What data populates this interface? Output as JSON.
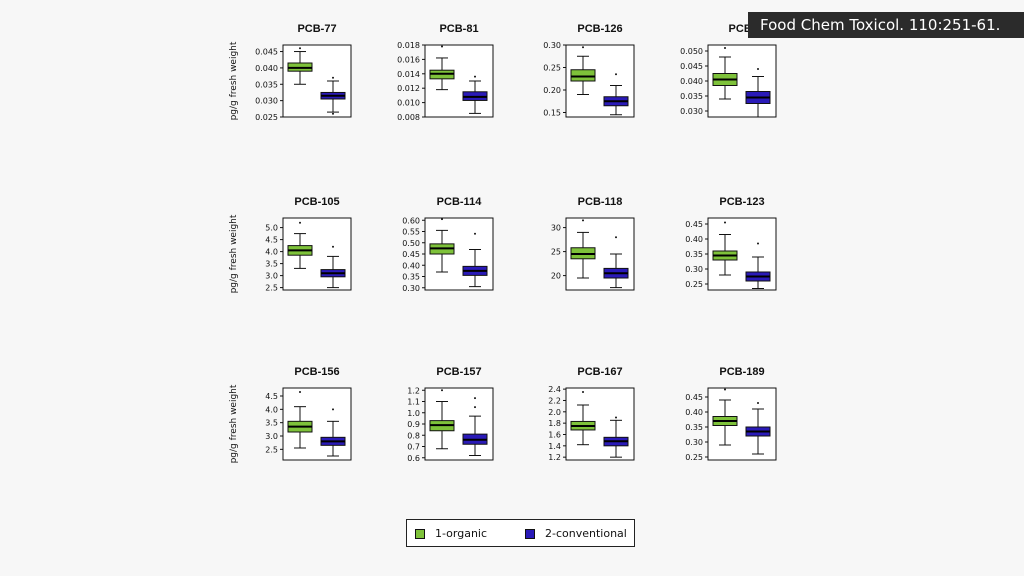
{
  "citation": "Food Chem Toxicol. 110:251-61.",
  "colors": {
    "organic": "#7ec23a",
    "conventional": "#2a1ab8"
  },
  "legend": {
    "organic_label": "1-organic",
    "conventional_label": "2-conventional"
  },
  "chart_data": [
    {
      "type": "box",
      "title": "PCB-77",
      "ylabel": "pg/g fresh weight",
      "ylim": [
        0.025,
        0.047
      ],
      "yticks": [
        "0.025",
        "0.030",
        "0.035",
        "0.040",
        "0.045"
      ],
      "series": [
        {
          "name": "1-organic",
          "whisker_low": 0.035,
          "q1": 0.039,
          "median": 0.04,
          "q3": 0.0415,
          "whisker_high": 0.045,
          "outliers": [
            0.046
          ]
        },
        {
          "name": "2-conventional",
          "whisker_low": 0.0265,
          "q1": 0.0305,
          "median": 0.0315,
          "q3": 0.0325,
          "whisker_high": 0.036,
          "outliers": [
            0.037,
            0.026
          ]
        }
      ]
    },
    {
      "type": "box",
      "title": "PCB-81",
      "ylabel": "",
      "ylim": [
        0.008,
        0.018
      ],
      "yticks": [
        "0.008",
        "0.010",
        "0.012",
        "0.014",
        "0.016",
        "0.018"
      ],
      "series": [
        {
          "name": "1-organic",
          "whisker_low": 0.0118,
          "q1": 0.0133,
          "median": 0.014,
          "q3": 0.0145,
          "whisker_high": 0.0162,
          "outliers": [
            0.0178
          ]
        },
        {
          "name": "2-conventional",
          "whisker_low": 0.0085,
          "q1": 0.0103,
          "median": 0.0108,
          "q3": 0.0115,
          "whisker_high": 0.013,
          "outliers": [
            0.0136
          ]
        }
      ]
    },
    {
      "type": "box",
      "title": "PCB-126",
      "ylabel": "",
      "ylim": [
        0.14,
        0.3
      ],
      "yticks": [
        "0.15",
        "0.20",
        "0.25",
        "0.30"
      ],
      "series": [
        {
          "name": "1-organic",
          "whisker_low": 0.19,
          "q1": 0.22,
          "median": 0.23,
          "q3": 0.245,
          "whisker_high": 0.275,
          "outliers": [
            0.295
          ]
        },
        {
          "name": "2-conventional",
          "whisker_low": 0.145,
          "q1": 0.165,
          "median": 0.175,
          "q3": 0.185,
          "whisker_high": 0.21,
          "outliers": [
            0.235
          ]
        }
      ]
    },
    {
      "type": "box",
      "title": "PCB-",
      "ylabel": "",
      "ylim": [
        0.028,
        0.052
      ],
      "yticks": [
        "0.030",
        "0.035",
        "0.040",
        "0.045",
        "0.050"
      ],
      "series": [
        {
          "name": "1-organic",
          "whisker_low": 0.034,
          "q1": 0.0385,
          "median": 0.0405,
          "q3": 0.0425,
          "whisker_high": 0.048,
          "outliers": [
            0.051
          ]
        },
        {
          "name": "2-conventional",
          "whisker_low": 0.028,
          "q1": 0.0325,
          "median": 0.0345,
          "q3": 0.0365,
          "whisker_high": 0.0415,
          "outliers": [
            0.044
          ]
        }
      ]
    },
    {
      "type": "box",
      "title": "PCB-105",
      "ylabel": "pg/g fresh weight",
      "ylim": [
        2.4,
        5.4
      ],
      "yticks": [
        "2.5",
        "3.0",
        "3.5",
        "4.0",
        "4.5",
        "5.0"
      ],
      "series": [
        {
          "name": "1-organic",
          "whisker_low": 3.3,
          "q1": 3.85,
          "median": 4.05,
          "q3": 4.25,
          "whisker_high": 4.75,
          "outliers": [
            5.2
          ]
        },
        {
          "name": "2-conventional",
          "whisker_low": 2.5,
          "q1": 2.95,
          "median": 3.1,
          "q3": 3.25,
          "whisker_high": 3.8,
          "outliers": [
            4.2
          ]
        }
      ]
    },
    {
      "type": "box",
      "title": "PCB-114",
      "ylabel": "",
      "ylim": [
        0.29,
        0.61
      ],
      "yticks": [
        "0.30",
        "0.35",
        "0.40",
        "0.45",
        "0.50",
        "0.55",
        "0.60"
      ],
      "series": [
        {
          "name": "1-organic",
          "whisker_low": 0.37,
          "q1": 0.45,
          "median": 0.475,
          "q3": 0.495,
          "whisker_high": 0.555,
          "outliers": [
            0.605
          ]
        },
        {
          "name": "2-conventional",
          "whisker_low": 0.305,
          "q1": 0.355,
          "median": 0.375,
          "q3": 0.395,
          "whisker_high": 0.47,
          "outliers": [
            0.54
          ]
        }
      ]
    },
    {
      "type": "box",
      "title": "PCB-118",
      "ylabel": "",
      "ylim": [
        17,
        32
      ],
      "yticks": [
        "20",
        "25",
        "30"
      ],
      "series": [
        {
          "name": "1-organic",
          "whisker_low": 19.5,
          "q1": 23.5,
          "median": 24.5,
          "q3": 25.8,
          "whisker_high": 29.0,
          "outliers": [
            31.5
          ]
        },
        {
          "name": "2-conventional",
          "whisker_low": 17.5,
          "q1": 19.5,
          "median": 20.5,
          "q3": 21.5,
          "whisker_high": 24.5,
          "outliers": [
            28.0
          ]
        }
      ]
    },
    {
      "type": "box",
      "title": "PCB-123",
      "ylabel": "",
      "ylim": [
        0.23,
        0.47
      ],
      "yticks": [
        "0.25",
        "0.30",
        "0.35",
        "0.40",
        "0.45"
      ],
      "series": [
        {
          "name": "1-organic",
          "whisker_low": 0.28,
          "q1": 0.33,
          "median": 0.345,
          "q3": 0.36,
          "whisker_high": 0.415,
          "outliers": [
            0.455
          ]
        },
        {
          "name": "2-conventional",
          "whisker_low": 0.235,
          "q1": 0.26,
          "median": 0.275,
          "q3": 0.29,
          "whisker_high": 0.34,
          "outliers": [
            0.385
          ]
        }
      ]
    },
    {
      "type": "box",
      "title": "PCB-156",
      "ylabel": "pg/g fresh weight",
      "ylim": [
        2.1,
        4.8
      ],
      "yticks": [
        "2.5",
        "3.0",
        "3.5",
        "4.0",
        "4.5"
      ],
      "series": [
        {
          "name": "1-organic",
          "whisker_low": 2.55,
          "q1": 3.15,
          "median": 3.35,
          "q3": 3.55,
          "whisker_high": 4.1,
          "outliers": [
            4.65
          ]
        },
        {
          "name": "2-conventional",
          "whisker_low": 2.25,
          "q1": 2.65,
          "median": 2.8,
          "q3": 2.95,
          "whisker_high": 3.55,
          "outliers": [
            4.0
          ]
        }
      ]
    },
    {
      "type": "box",
      "title": "PCB-157",
      "ylabel": "",
      "ylim": [
        0.58,
        1.22
      ],
      "yticks": [
        "0.6",
        "0.7",
        "0.8",
        "0.9",
        "1.0",
        "1.1",
        "1.2"
      ],
      "series": [
        {
          "name": "1-organic",
          "whisker_low": 0.68,
          "q1": 0.84,
          "median": 0.89,
          "q3": 0.93,
          "whisker_high": 1.1,
          "outliers": [
            1.2
          ]
        },
        {
          "name": "2-conventional",
          "whisker_low": 0.62,
          "q1": 0.72,
          "median": 0.76,
          "q3": 0.81,
          "whisker_high": 0.97,
          "outliers": [
            1.05,
            1.13
          ]
        }
      ]
    },
    {
      "type": "box",
      "title": "PCB-167",
      "ylabel": "",
      "ylim": [
        1.15,
        2.42
      ],
      "yticks": [
        "1.2",
        "1.4",
        "1.6",
        "1.8",
        "2.0",
        "2.2",
        "2.4"
      ],
      "series": [
        {
          "name": "1-organic",
          "whisker_low": 1.42,
          "q1": 1.68,
          "median": 1.75,
          "q3": 1.83,
          "whisker_high": 2.12,
          "outliers": [
            2.35
          ]
        },
        {
          "name": "2-conventional",
          "whisker_low": 1.2,
          "q1": 1.4,
          "median": 1.48,
          "q3": 1.55,
          "whisker_high": 1.85,
          "outliers": [
            1.9
          ]
        }
      ]
    },
    {
      "type": "box",
      "title": "PCB-189",
      "ylabel": "",
      "ylim": [
        0.24,
        0.48
      ],
      "yticks": [
        "0.25",
        "0.30",
        "0.35",
        "0.40",
        "0.45"
      ],
      "series": [
        {
          "name": "1-organic",
          "whisker_low": 0.29,
          "q1": 0.355,
          "median": 0.37,
          "q3": 0.385,
          "whisker_high": 0.44,
          "outliers": [
            0.475
          ]
        },
        {
          "name": "2-conventional",
          "whisker_low": 0.26,
          "q1": 0.32,
          "median": 0.335,
          "q3": 0.35,
          "whisker_high": 0.41,
          "outliers": [
            0.43
          ]
        }
      ]
    }
  ]
}
